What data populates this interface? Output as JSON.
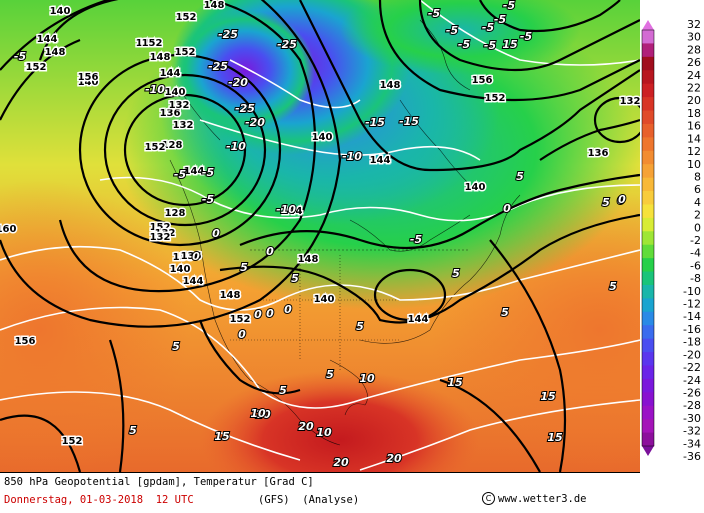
{
  "map": {
    "product": "GFS 850 hPa geopotential and temperature analysis",
    "colors": {
      "background_warm": "#f08a2a",
      "background_hot": "#c8201e",
      "cold_core": "#7a2be0",
      "contour_black": "#000000",
      "contour_white": "#ffffff"
    },
    "geopotential_labels": [
      "140",
      "152",
      "144",
      "148",
      "152",
      "156",
      "140",
      "132",
      "144",
      "152",
      "136",
      "132",
      "128",
      "128",
      "132",
      "140",
      "136",
      "144",
      "144",
      "148",
      "148",
      "152",
      "152",
      "156",
      "160",
      "156",
      "152",
      "140",
      "144",
      "140",
      "148",
      "136",
      "132",
      "140",
      "144",
      "144",
      "148",
      "152",
      "156",
      "152",
      "136",
      "132",
      "140",
      "144",
      "148",
      "152"
    ],
    "temperature_labels": [
      "-5",
      "-25",
      "-25",
      "-25",
      "-20",
      "-25",
      "-20",
      "-10",
      "-5",
      "-5",
      "-15",
      "-15",
      "-10",
      "-10",
      "-5",
      "-5",
      "-5",
      "-5",
      "-5",
      "-5",
      "0",
      "0",
      "0",
      "5",
      "0",
      "5",
      "0",
      "-5",
      "5",
      "5",
      "5",
      "0",
      "0",
      "-5",
      "10",
      "10",
      "5",
      "5",
      "15",
      "15",
      "15",
      "20",
      "20",
      "10",
      "10",
      "5",
      "5",
      "5",
      "-5",
      "-5",
      "5",
      "0",
      "15",
      "20",
      "15",
      "5",
      "0",
      "-10",
      "0"
    ]
  },
  "colorbar": {
    "ticks": [
      "32",
      "30",
      "28",
      "26",
      "24",
      "22",
      "20",
      "18",
      "16",
      "14",
      "12",
      "10",
      "8",
      "6",
      "4",
      "2",
      "0",
      "-2",
      "-4",
      "-6",
      "-8",
      "-10",
      "-12",
      "-14",
      "-16",
      "-18",
      "-20",
      "-22",
      "-24",
      "-26",
      "-28",
      "-30",
      "-32",
      "-34",
      "-36"
    ],
    "colors": [
      "#d36bd3",
      "#b0207a",
      "#a00e1e",
      "#b81620",
      "#cc2024",
      "#d83426",
      "#e04a2a",
      "#e8602c",
      "#ee762e",
      "#f28c32",
      "#f6a236",
      "#f8b838",
      "#f8cc3c",
      "#f6e23c",
      "#d8ec36",
      "#9ee636",
      "#60dc3a",
      "#26d04a",
      "#1ac47a",
      "#1ab6aa",
      "#1aa4d0",
      "#2a8ae6",
      "#3a6cee",
      "#4a4ef0",
      "#5a36ee",
      "#6a24e8",
      "#7a18dc",
      "#8812d0",
      "#9a12c6",
      "#a414b8",
      "#8c109c"
    ]
  },
  "footer": {
    "line1": "850 hPa Geopotential [gpdam], Temperatur [Grad C]",
    "date": "Donnerstag, 01-03-2018  12 UTC",
    "model": "(GFS)  (Analyse)",
    "credit": "www.wetter3.de",
    "copyright_symbol": "C"
  }
}
